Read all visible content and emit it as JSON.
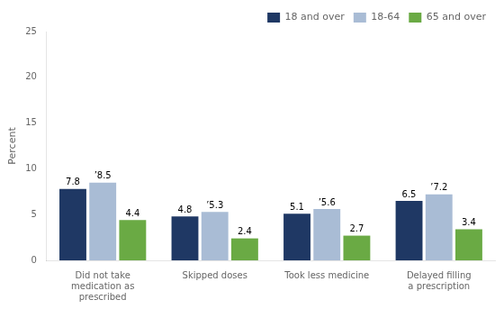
{
  "chart_data": {
    "type": "bar",
    "categories": [
      "Did not take\nmedication as\nprescribed",
      "Skipped doses",
      "Took less medicine",
      "Delayed filling\na prescription"
    ],
    "series": [
      {
        "name": "18 and over",
        "color": "#1f3864",
        "values": [
          7.8,
          4.8,
          5.1,
          6.5
        ]
      },
      {
        "name": "18-64",
        "color": "#a9bcd5",
        "values": [
          8.5,
          5.3,
          5.6,
          7.2
        ],
        "value_labels": [
          "’8.5",
          "’5.3",
          "’5.6",
          "’7.2"
        ]
      },
      {
        "name": "65 and over",
        "color": "#6aaa44",
        "values": [
          4.4,
          2.4,
          2.7,
          3.4
        ]
      }
    ],
    "y_label": "Percent",
    "ylim": [
      0,
      25
    ],
    "yticks": [
      0,
      5,
      10,
      15,
      20,
      25
    ],
    "grid": false,
    "legend": "upper right",
    "data_labels": true
  }
}
